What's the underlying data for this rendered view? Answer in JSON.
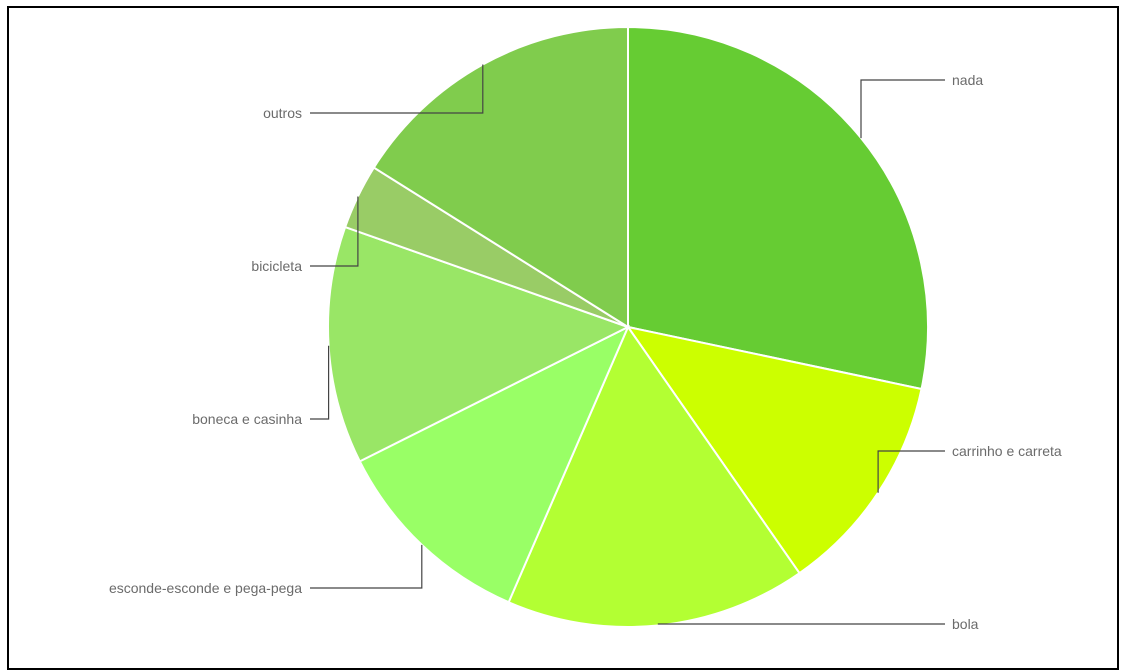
{
  "chart_data": {
    "type": "pie",
    "title": "",
    "legend": "none",
    "slices": [
      {
        "label": "nada",
        "value": 25.0,
        "color": "#66cc33",
        "label_side": "right"
      },
      {
        "label": "carrinho e carreta",
        "value": 10.6,
        "color": "#ccff00",
        "label_side": "right"
      },
      {
        "label": "bola",
        "value": 14.3,
        "color": "#b3ff33",
        "label_side": "right"
      },
      {
        "label": "esconde-esconde e pega-pega",
        "value": 9.8,
        "color": "#99ff66",
        "label_side": "left"
      },
      {
        "label": "boneca e casinha",
        "value": 11.3,
        "color": "#99e666",
        "label_side": "left"
      },
      {
        "label": "bicicleta",
        "value": 3.1,
        "color": "#99cc66",
        "label_side": "left"
      },
      {
        "label": "outros",
        "value": 14.2,
        "color": "#80cc4d",
        "label_side": "left"
      }
    ]
  }
}
